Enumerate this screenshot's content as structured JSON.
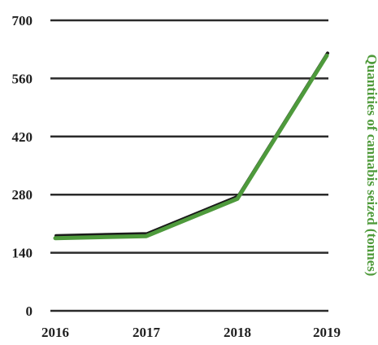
{
  "chart_data": {
    "type": "line",
    "title": "",
    "xlabel": "",
    "ylabel": "Quantities of cannabis seized (tonnes)",
    "categories": [
      "2016",
      "2017",
      "2018",
      "2019"
    ],
    "series": [
      {
        "values": [
          175,
          180,
          270,
          615
        ]
      }
    ],
    "ylim": [
      0,
      700
    ],
    "yticks": [
      "0",
      "140",
      "280",
      "420",
      "560",
      "700"
    ],
    "grid": true,
    "legend": "none",
    "colors": {
      "line": "#4e9a3c",
      "line_shadow": "#1a1a1a",
      "grid": "#2a2a2a",
      "ylabel": "#4f9a3a"
    }
  }
}
